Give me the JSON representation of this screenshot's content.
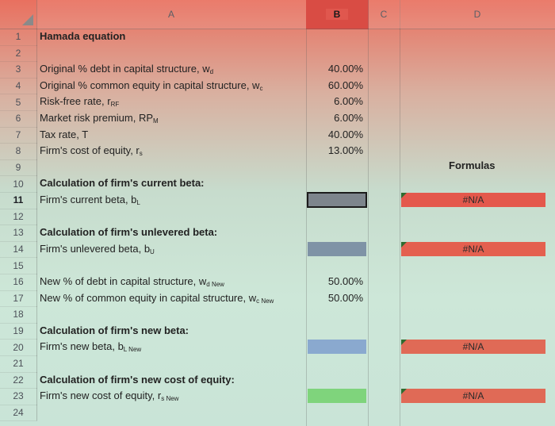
{
  "columns": [
    "A",
    "B",
    "C",
    "D"
  ],
  "selected_column": "B",
  "selected_row": "11",
  "rows": [
    {
      "num": "1"
    },
    {
      "num": "2"
    },
    {
      "num": "3"
    },
    {
      "num": "4"
    },
    {
      "num": "5"
    },
    {
      "num": "6"
    },
    {
      "num": "7"
    },
    {
      "num": "8"
    },
    {
      "num": "9"
    },
    {
      "num": "10"
    },
    {
      "num": "11"
    },
    {
      "num": "12"
    },
    {
      "num": "13"
    },
    {
      "num": "14"
    },
    {
      "num": "15"
    },
    {
      "num": "16"
    },
    {
      "num": "17"
    },
    {
      "num": "18"
    },
    {
      "num": "19"
    },
    {
      "num": "20"
    },
    {
      "num": "21"
    },
    {
      "num": "22"
    },
    {
      "num": "23"
    },
    {
      "num": "24"
    }
  ],
  "cells": {
    "title": "Hamada equation",
    "r3_label": "Original % debt in capital structure, w",
    "r3_sub": "d",
    "r3_value": "40.00%",
    "r4_label": "Original % common equity in capital structure, w",
    "r4_sub": "c",
    "r4_value": "60.00%",
    "r5_label": "Risk-free rate, r",
    "r5_sub": "RF",
    "r5_value": "6.00%",
    "r6_label": "Market risk premium, RP",
    "r6_sub": "M",
    "r6_value": "6.00%",
    "r7_label": "Tax rate, T",
    "r7_value": "40.00%",
    "r8_label": "Firm's cost of equity, r",
    "r8_sub": "s",
    "r8_value": "13.00%",
    "formulas_header": "Formulas",
    "r10_label": "Calculation of firm's current beta:",
    "r11_label": "Firm's current beta, b",
    "r11_sub": "L",
    "r11_formula": "#N/A",
    "r13_label": "Calculation of firm's unlevered beta:",
    "r14_label": "Firm's unlevered beta, b",
    "r14_sub": "U",
    "r14_formula": "#N/A",
    "r16_label": "New % of debt in capital structure, w",
    "r16_sub": "d New",
    "r16_value": "50.00%",
    "r17_label": "New % of common equity in capital structure, w",
    "r17_sub": "c New",
    "r17_value": "50.00%",
    "r19_label": "Calculation of firm's new beta:",
    "r20_label": "Firm's new beta, b",
    "r20_sub": "L New",
    "r20_formula": "#N/A",
    "r22_label": "Calculation of firm's new cost of equity:",
    "r23_label": "Firm's new cost of equity, r",
    "r23_sub": "s New",
    "r23_formula": "#N/A"
  },
  "colors": {
    "b11_fill": "#7d858c",
    "b14_fill": "#7f93a6",
    "b20_fill": "#8aa9cf",
    "b23_fill": "#7fd47c",
    "d_fill": "#e4584c"
  }
}
